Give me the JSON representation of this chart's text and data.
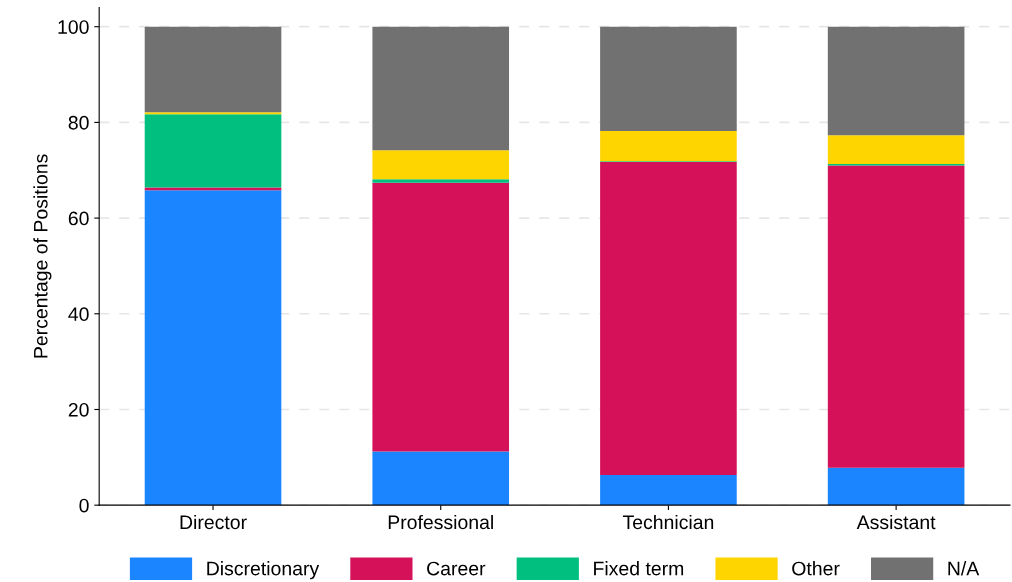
{
  "chart_data": {
    "type": "bar",
    "stacked": true,
    "ylabel": "Percentage of Positions",
    "categories": [
      "Director",
      "Professional",
      "Technician",
      "Assistant"
    ],
    "series": [
      {
        "name": "Discretionary",
        "color": "#1a85ff",
        "values": [
          65.8,
          11.2,
          6.3,
          7.8
        ]
      },
      {
        "name": "Career",
        "color": "#d41159",
        "values": [
          0.6,
          56.2,
          65.4,
          63.2
        ]
      },
      {
        "name": "Fixed term",
        "color": "#00bf7f",
        "values": [
          15.3,
          0.7,
          0.2,
          0.3
        ]
      },
      {
        "name": "Other",
        "color": "#ffd500",
        "values": [
          0.4,
          6.1,
          6.3,
          6.0
        ]
      },
      {
        "name": "N/A",
        "color": "#717171",
        "values": [
          17.9,
          25.8,
          21.8,
          22.7
        ]
      }
    ],
    "ylim": [
      0,
      104
    ],
    "yticks": [
      0,
      20,
      40,
      60,
      80,
      100
    ],
    "grid": "y",
    "legend": "bottom"
  }
}
